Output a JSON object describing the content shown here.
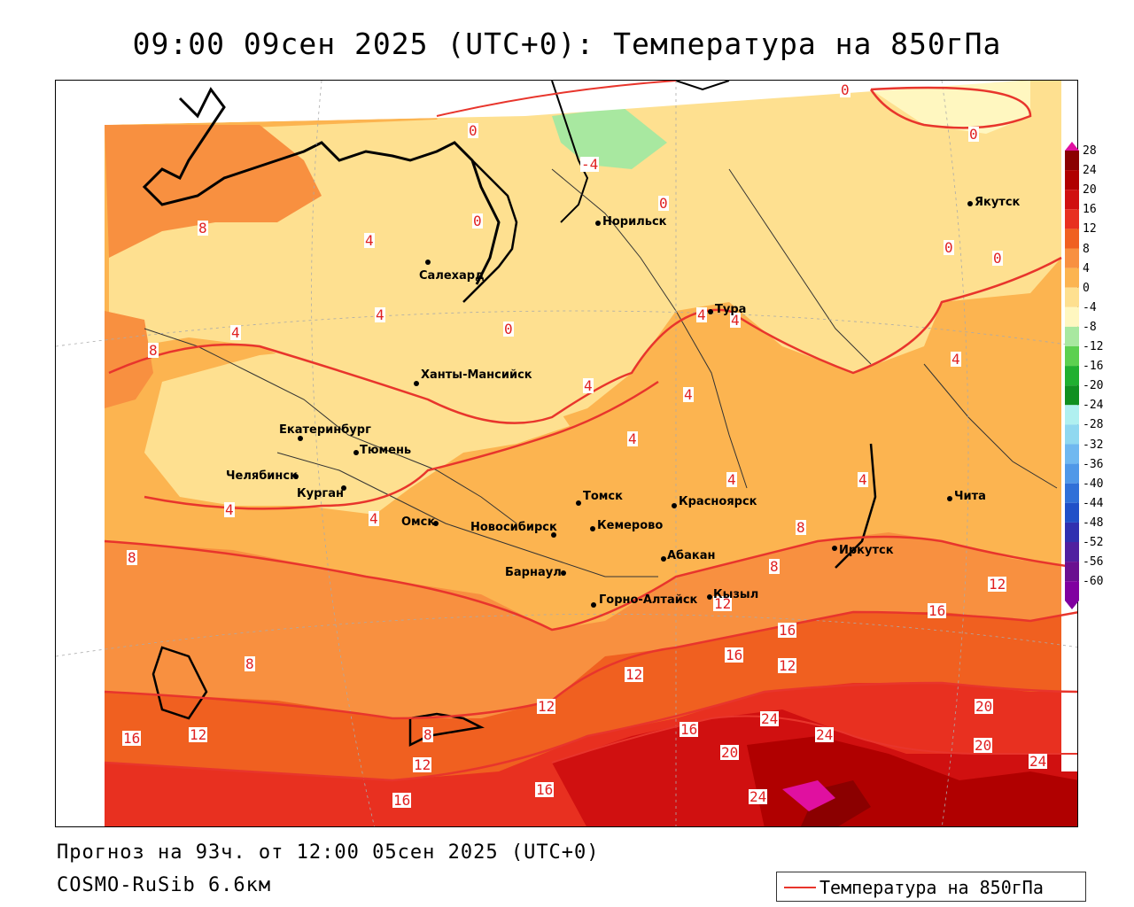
{
  "title": "09:00 09сен 2025 (UTC+0): Температура на 850гПа",
  "footer": {
    "forecast": "Прогноз на 93ч. от 12:00 05сен 2025 (UTC+0)",
    "model": "COSMO-RuSib 6.6км"
  },
  "legend": {
    "label": "Температура на 850гПа",
    "line_color": "#e8352c"
  },
  "colorbar": {
    "labels": [
      "28",
      "24",
      "20",
      "16",
      "12",
      "8",
      "4",
      "0",
      "-4",
      "-8",
      "-12",
      "-16",
      "-20",
      "-24",
      "-28",
      "-32",
      "-36",
      "-40",
      "-44",
      "-48",
      "-52",
      "-56",
      "-60"
    ],
    "colors": [
      "#8b0000",
      "#b00000",
      "#d01010",
      "#e83020",
      "#f06020",
      "#f89040",
      "#fcb450",
      "#fee090",
      "#fff7c0",
      "#a8e8a0",
      "#5cd050",
      "#20b030",
      "#109020",
      "#b0f0f0",
      "#90d8f0",
      "#70b8f0",
      "#5098e8",
      "#3070d8",
      "#2050c8",
      "#3030b0",
      "#5020a0",
      "#6a1090",
      "#8000a0"
    ]
  },
  "cities": [
    {
      "name": "Якутск"
    },
    {
      "name": "Норильск"
    },
    {
      "name": "Салехард"
    },
    {
      "name": "Тура"
    },
    {
      "name": "Ханты-Мансийск"
    },
    {
      "name": "Екатеринбург"
    },
    {
      "name": "Тюмень"
    },
    {
      "name": "Челябинск"
    },
    {
      "name": "Курган"
    },
    {
      "name": "Омск"
    },
    {
      "name": "Томск"
    },
    {
      "name": "Новосибирск"
    },
    {
      "name": "Кемерово"
    },
    {
      "name": "Красноярск"
    },
    {
      "name": "Барнаул"
    },
    {
      "name": "Абакан"
    },
    {
      "name": "Горно-Алтайск"
    },
    {
      "name": "Кызыл"
    },
    {
      "name": "Иркутск"
    },
    {
      "name": "Чита"
    }
  ],
  "contour_labels": [
    "0",
    "0",
    "0",
    "0",
    "0",
    "0",
    "0",
    "-4",
    "0",
    "4",
    "4",
    "4",
    "4",
    "4",
    "4",
    "4",
    "4",
    "4",
    "4",
    "4",
    "4",
    "4",
    "8",
    "8",
    "8",
    "8",
    "8",
    "8",
    "8",
    "12",
    "12",
    "12",
    "12",
    "12",
    "12",
    "12",
    "16",
    "16",
    "16",
    "16",
    "16",
    "16",
    "16",
    "20",
    "20",
    "20",
    "24",
    "24",
    "24"
  ]
}
